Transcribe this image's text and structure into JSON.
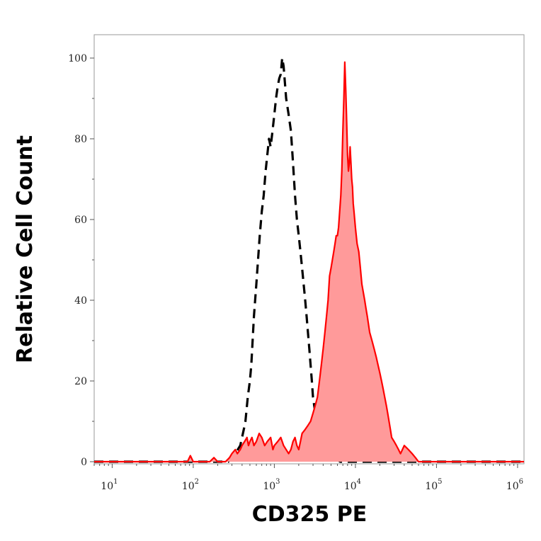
{
  "chart_data": {
    "type": "area",
    "xlabel": "CD325 PE",
    "ylabel": "Relative Cell Count",
    "x_scale": "log",
    "xlim": [
      6,
      1200000
    ],
    "ylim": [
      0,
      100
    ],
    "y_ticks": [
      "0",
      "20",
      "40",
      "60",
      "80",
      "100"
    ],
    "x_ticks": [
      {
        "base": "10",
        "exp": "1",
        "value": 10
      },
      {
        "base": "10",
        "exp": "2",
        "value": 100
      },
      {
        "base": "10",
        "exp": "3",
        "value": 1000
      },
      {
        "base": "10",
        "exp": "4",
        "value": 10000
      },
      {
        "base": "10",
        "exp": "5",
        "value": 100000
      },
      {
        "base": "10",
        "exp": "6",
        "value": 1000000
      }
    ],
    "grid": false,
    "series": [
      {
        "style": "dashed-line",
        "color": "#000000",
        "points": [
          [
            6,
            0
          ],
          [
            200,
            0
          ],
          [
            270,
            0
          ],
          [
            330,
            2
          ],
          [
            380,
            4
          ],
          [
            420,
            8
          ],
          [
            440,
            10
          ],
          [
            470,
            16
          ],
          [
            500,
            20
          ],
          [
            520,
            24
          ],
          [
            560,
            36
          ],
          [
            600,
            44
          ],
          [
            630,
            50
          ],
          [
            660,
            56
          ],
          [
            700,
            62
          ],
          [
            740,
            66
          ],
          [
            780,
            72
          ],
          [
            820,
            76
          ],
          [
            860,
            80
          ],
          [
            900,
            78
          ],
          [
            950,
            82
          ],
          [
            1000,
            86
          ],
          [
            1050,
            90
          ],
          [
            1100,
            93
          ],
          [
            1150,
            95
          ],
          [
            1200,
            96
          ],
          [
            1250,
            100
          ],
          [
            1300,
            98
          ],
          [
            1350,
            94
          ],
          [
            1400,
            90
          ],
          [
            1500,
            86
          ],
          [
            1600,
            82
          ],
          [
            1700,
            74
          ],
          [
            1800,
            66
          ],
          [
            1900,
            60
          ],
          [
            2000,
            56
          ],
          [
            2100,
            52
          ],
          [
            2200,
            48
          ],
          [
            2300,
            44
          ],
          [
            2400,
            40
          ],
          [
            2500,
            36
          ],
          [
            2600,
            32
          ],
          [
            2700,
            28
          ],
          [
            2800,
            24
          ],
          [
            2900,
            20
          ],
          [
            3000,
            16
          ],
          [
            3200,
            12
          ],
          [
            3500,
            8
          ],
          [
            3800,
            6
          ],
          [
            4200,
            4
          ],
          [
            4800,
            2
          ],
          [
            5500,
            1
          ],
          [
            6500,
            0
          ],
          [
            15000,
            0
          ],
          [
            1200000,
            0
          ]
        ]
      },
      {
        "style": "filled-area",
        "color": "#ff0000",
        "fill": "#ff9a9a",
        "points": [
          [
            6,
            0
          ],
          [
            50,
            0
          ],
          [
            85,
            0
          ],
          [
            92,
            1.5
          ],
          [
            100,
            0
          ],
          [
            160,
            0
          ],
          [
            180,
            1
          ],
          [
            200,
            0
          ],
          [
            250,
            0
          ],
          [
            280,
            1
          ],
          [
            300,
            2
          ],
          [
            330,
            3
          ],
          [
            350,
            2
          ],
          [
            380,
            3
          ],
          [
            400,
            4
          ],
          [
            430,
            5
          ],
          [
            460,
            6
          ],
          [
            480,
            4
          ],
          [
            500,
            5
          ],
          [
            530,
            6
          ],
          [
            560,
            4
          ],
          [
            600,
            5
          ],
          [
            650,
            7
          ],
          [
            700,
            6
          ],
          [
            760,
            4
          ],
          [
            820,
            5
          ],
          [
            900,
            6
          ],
          [
            960,
            3
          ],
          [
            1000,
            4
          ],
          [
            1100,
            5
          ],
          [
            1200,
            6
          ],
          [
            1300,
            4
          ],
          [
            1400,
            3
          ],
          [
            1500,
            2
          ],
          [
            1600,
            3
          ],
          [
            1700,
            5
          ],
          [
            1800,
            6
          ],
          [
            1900,
            4
          ],
          [
            2000,
            3
          ],
          [
            2100,
            5
          ],
          [
            2200,
            7
          ],
          [
            2400,
            8
          ],
          [
            2600,
            9
          ],
          [
            2800,
            10
          ],
          [
            3000,
            12
          ],
          [
            3200,
            14
          ],
          [
            3400,
            16
          ],
          [
            3600,
            20
          ],
          [
            3800,
            24
          ],
          [
            4000,
            28
          ],
          [
            4200,
            32
          ],
          [
            4400,
            36
          ],
          [
            4600,
            40
          ],
          [
            4800,
            46
          ],
          [
            5000,
            48
          ],
          [
            5200,
            50
          ],
          [
            5400,
            52
          ],
          [
            5600,
            54
          ],
          [
            5800,
            56
          ],
          [
            6000,
            56
          ],
          [
            6200,
            58
          ],
          [
            6400,
            62
          ],
          [
            6600,
            66
          ],
          [
            6800,
            72
          ],
          [
            7000,
            82
          ],
          [
            7200,
            90
          ],
          [
            7400,
            99
          ],
          [
            7600,
            92
          ],
          [
            7800,
            84
          ],
          [
            8000,
            76
          ],
          [
            8200,
            72
          ],
          [
            8400,
            74
          ],
          [
            8600,
            78
          ],
          [
            8800,
            74
          ],
          [
            9000,
            70
          ],
          [
            9200,
            68
          ],
          [
            9400,
            64
          ],
          [
            9600,
            62
          ],
          [
            9800,
            60
          ],
          [
            10000,
            58
          ],
          [
            10500,
            54
          ],
          [
            11000,
            52
          ],
          [
            11500,
            48
          ],
          [
            12000,
            44
          ],
          [
            12500,
            42
          ],
          [
            13000,
            40
          ],
          [
            13500,
            38
          ],
          [
            14000,
            36
          ],
          [
            14500,
            34
          ],
          [
            15000,
            32
          ],
          [
            16000,
            30
          ],
          [
            17000,
            28
          ],
          [
            18000,
            26
          ],
          [
            19000,
            24
          ],
          [
            20000,
            22
          ],
          [
            21000,
            20
          ],
          [
            22000,
            18
          ],
          [
            23000,
            16
          ],
          [
            24000,
            14
          ],
          [
            25000,
            12
          ],
          [
            26000,
            10
          ],
          [
            27000,
            8
          ],
          [
            28000,
            6
          ],
          [
            30000,
            5
          ],
          [
            32000,
            4
          ],
          [
            34000,
            3
          ],
          [
            36000,
            2
          ],
          [
            38000,
            3
          ],
          [
            40000,
            4
          ],
          [
            45000,
            3
          ],
          [
            50000,
            2
          ],
          [
            55000,
            1
          ],
          [
            60000,
            0
          ],
          [
            100000,
            0
          ],
          [
            1200000,
            0
          ]
        ]
      }
    ]
  }
}
